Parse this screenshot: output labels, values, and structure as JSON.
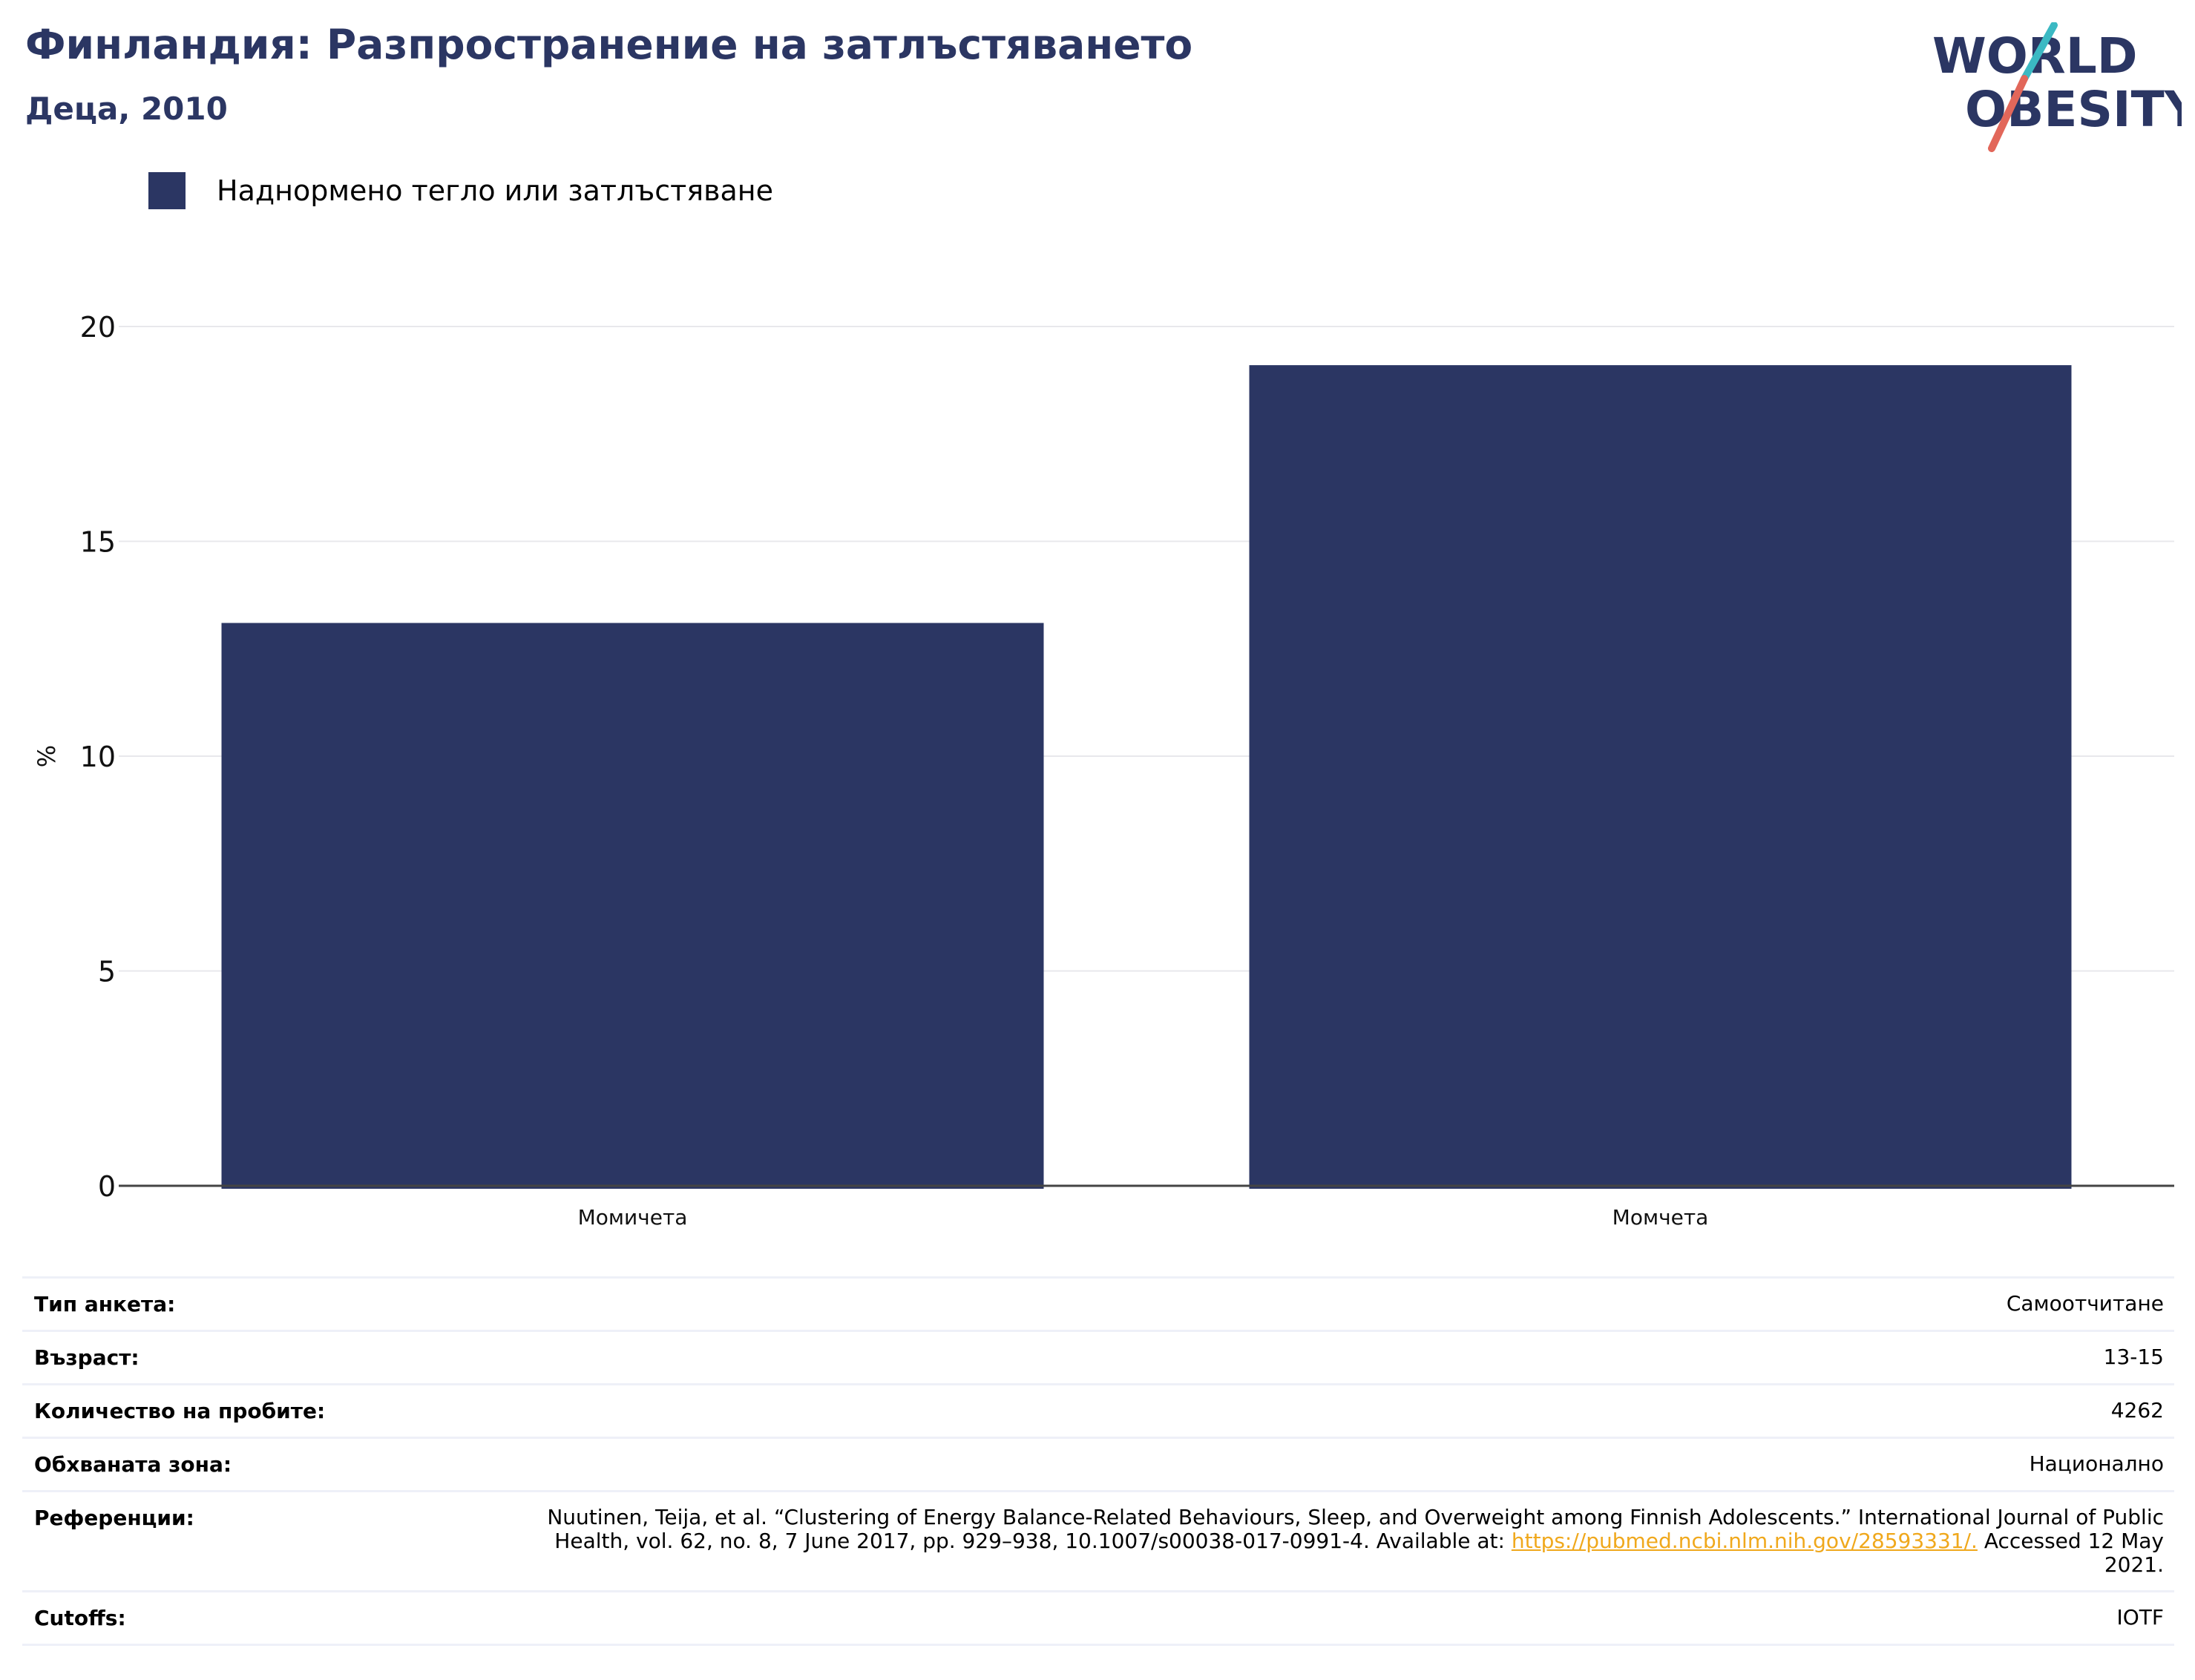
{
  "title": "Финландия: Разпространение на затлъстяването",
  "subtitle": "Деца, 2010",
  "logo": {
    "line1": "WORLD",
    "line2": "OBESITY",
    "colors": [
      "#2b3663",
      "#e2675a",
      "#3bb9c3"
    ]
  },
  "legend": {
    "label": "Наднормено тегло или затлъстяване",
    "color": "#2b3663"
  },
  "chart_data": {
    "type": "bar",
    "categories": [
      "Момичета",
      "Момчета"
    ],
    "series": [
      {
        "name": "Наднормено тегло или затлъстяване",
        "values": [
          13.1,
          19.1
        ],
        "color": "#2b3663"
      }
    ],
    "ylabel": "%",
    "xlabel": "",
    "ylim": [
      0,
      20
    ],
    "yticks": [
      0,
      5,
      10,
      15,
      20
    ],
    "grid": true,
    "legend_position": "top-left"
  },
  "info": {
    "rows": [
      {
        "key": "Тип анкета:",
        "value": "Самоотчитане"
      },
      {
        "key": "Възраст:",
        "value": "13-15"
      },
      {
        "key": "Количество на пробите:",
        "value": "4262"
      },
      {
        "key": "Обхваната зона:",
        "value": "Национално"
      }
    ],
    "reference": {
      "key": "Референции:",
      "text_before": "Nuutinen, Teija, et al. “Clustering of Energy Balance-Related Behaviours, Sleep, and Overweight among Finnish Adolescents.” International Journal of Public Health, vol. 62, no. 8, 7 June 2017, pp. 929–938, 10.1007/s00038-017-0991-4. Available at: ",
      "link": "https://pubmed.ncbi.nlm.nih.gov/28593331/.",
      "text_after": " Accessed 12 May 2021."
    },
    "cutoffs": {
      "key": "Cutoffs:",
      "value": "IOTF"
    }
  }
}
